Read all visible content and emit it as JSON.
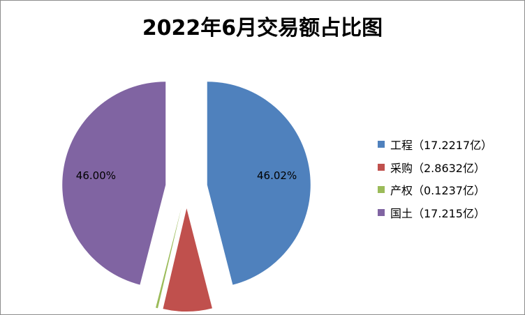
{
  "chart_data": {
    "type": "pie",
    "title": "2022年6月交易额占比图",
    "slices": [
      {
        "name": "工程",
        "legend": "工程（17.2217亿）",
        "value": 17.2217,
        "percent_label": "46.02%",
        "color": "#4f81bd"
      },
      {
        "name": "采购",
        "legend": "采购（2.8632亿）",
        "value": 2.8632,
        "percent_label": "7.65%",
        "color": "#c0504d"
      },
      {
        "name": "产权",
        "legend": "产权（0.1237亿）",
        "value": 0.1237,
        "percent_label": "0.33%",
        "color": "#9bbb59"
      },
      {
        "name": "国土",
        "legend": "国土（17.215亿）",
        "value": 17.215,
        "percent_label": "46.00%",
        "color": "#8064a2"
      }
    ],
    "legend_position": "right",
    "exploded": true
  }
}
